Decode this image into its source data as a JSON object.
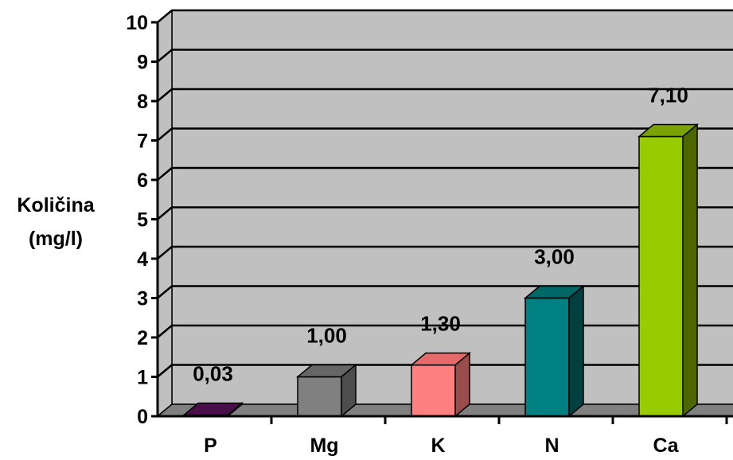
{
  "chart_data": {
    "type": "bar",
    "categories": [
      "P",
      "Mg",
      "K",
      "N",
      "Ca"
    ],
    "values": [
      0.03,
      1.0,
      1.3,
      3.0,
      7.1
    ],
    "data_labels": [
      "0,03",
      "1,00",
      "1,30",
      "3,00",
      "7,10"
    ],
    "ylabel_lines": [
      "Količina",
      "(mg/l)"
    ],
    "ylim": [
      0,
      10
    ],
    "yticks": [
      0,
      1,
      2,
      3,
      4,
      5,
      6,
      7,
      8,
      9,
      10
    ],
    "grid": true,
    "legend": "none",
    "three_d": true,
    "colors": {
      "plot_background": "#c0c0c0",
      "floor": "#808080",
      "gridline": "#000000",
      "bars": [
        {
          "front": "#660066",
          "top": "#4a0f4a",
          "side": "#2e002e"
        },
        {
          "front": "#808080",
          "top": "#666666",
          "side": "#4d4d4d"
        },
        {
          "front": "#ff8080",
          "top": "#e66a6a",
          "side": "#994d4d"
        },
        {
          "front": "#008080",
          "top": "#006666",
          "side": "#004040"
        },
        {
          "front": "#99cc00",
          "top": "#7aa300",
          "side": "#4d6600"
        }
      ]
    }
  }
}
